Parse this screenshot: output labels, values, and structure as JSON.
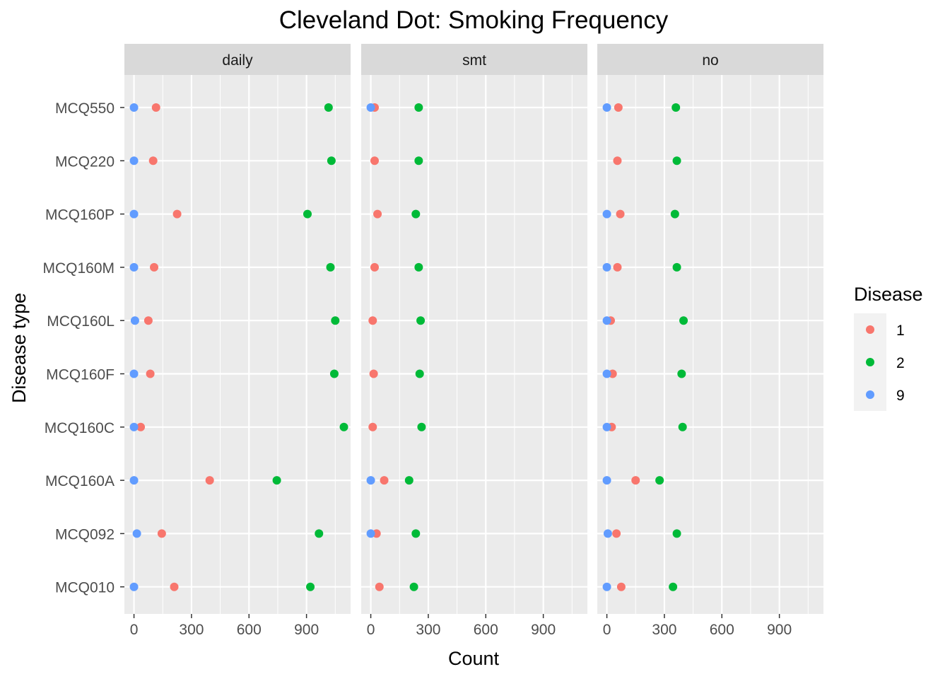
{
  "chart_data": {
    "type": "scatter",
    "title": "Cleveland Dot: Smoking Frequency",
    "xlabel": "Count",
    "ylabel": "Disease type",
    "xlim": [
      -50,
      1130
    ],
    "x_ticks": [
      0,
      300,
      600,
      900
    ],
    "grid": true,
    "legend": {
      "title": "Disease",
      "position": "right"
    },
    "categories": [
      "MCQ550",
      "MCQ220",
      "MCQ160P",
      "MCQ160M",
      "MCQ160L",
      "MCQ160F",
      "MCQ160C",
      "MCQ160A",
      "MCQ092",
      "MCQ010"
    ],
    "panels": [
      {
        "name": "daily",
        "series": [
          {
            "name": "1",
            "color": "#F8766D",
            "values": [
              115,
              100,
              225,
              105,
              75,
              85,
              35,
              395,
              145,
              210
            ]
          },
          {
            "name": "2",
            "color": "#00BA38",
            "values": [
              1015,
              1030,
              905,
              1025,
              1050,
              1045,
              1095,
              745,
              965,
              920
            ]
          },
          {
            "name": "9",
            "color": "#619CFF",
            "values": [
              0,
              0,
              0,
              0,
              5,
              0,
              0,
              0,
              15,
              0
            ]
          }
        ]
      },
      {
        "name": "smt",
        "series": [
          {
            "name": "1",
            "color": "#F8766D",
            "values": [
              20,
              20,
              35,
              20,
              10,
              15,
              10,
              70,
              30,
              45
            ]
          },
          {
            "name": "2",
            "color": "#00BA38",
            "values": [
              250,
              250,
              235,
              250,
              260,
              255,
              265,
              200,
              235,
              225
            ]
          },
          {
            "name": "9",
            "color": "#619CFF",
            "values": [
              0,
              null,
              null,
              null,
              null,
              null,
              null,
              0,
              0,
              null
            ]
          }
        ]
      },
      {
        "name": "no",
        "series": [
          {
            "name": "1",
            "color": "#F8766D",
            "values": [
              60,
              55,
              70,
              55,
              20,
              30,
              25,
              150,
              50,
              75
            ]
          },
          {
            "name": "2",
            "color": "#00BA38",
            "values": [
              360,
              365,
              355,
              365,
              400,
              390,
              395,
              275,
              365,
              345
            ]
          },
          {
            "name": "9",
            "color": "#619CFF",
            "values": [
              0,
              null,
              0,
              0,
              0,
              0,
              0,
              0,
              5,
              0
            ]
          }
        ]
      }
    ]
  }
}
